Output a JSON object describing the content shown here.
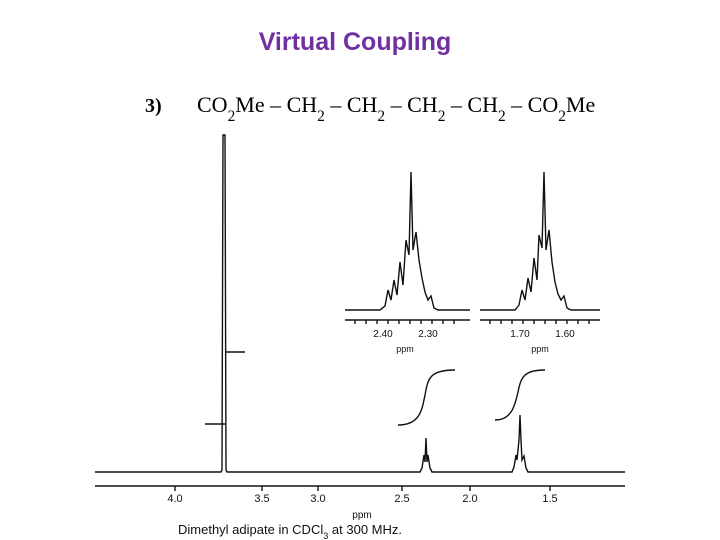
{
  "header": {
    "title": "Virtual Coupling"
  },
  "item": {
    "number": "3)",
    "formula": [
      "CO",
      "2",
      "Me – CH",
      "2",
      " –  CH",
      "2",
      " – CH",
      "2",
      " –  CH",
      "2",
      " –  CO",
      "2",
      "Me"
    ]
  },
  "spectrum": {
    "axis_ticks": [
      "4.0",
      "3.5",
      "3.0",
      "2.5",
      "2.0",
      "1.5"
    ],
    "axis_label": "ppm",
    "insets": [
      {
        "ticks": [
          "2.40",
          "2.30"
        ],
        "unit": "ppm"
      },
      {
        "ticks": [
          "1.70",
          "1.60"
        ],
        "unit": "ppm"
      }
    ],
    "caption": [
      "Dimethyl adipate in CDCl",
      "3",
      " at 300 MHz."
    ]
  }
}
